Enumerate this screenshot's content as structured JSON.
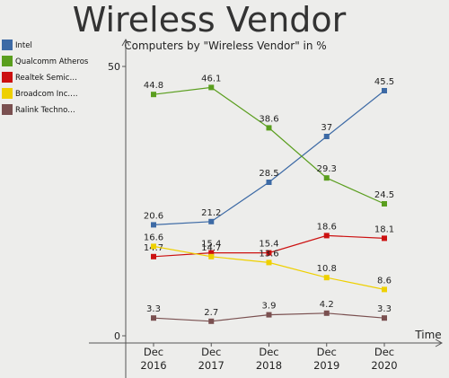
{
  "chart_data": {
    "type": "line",
    "title": "Wireless Vendor",
    "subtitle": "Computers by \"Wireless Vendor\" in %",
    "xlabel": "Time",
    "ylabel": "",
    "categories": [
      "Dec 2016",
      "Dec 2017",
      "Dec 2018",
      "Dec 2019",
      "Dec 2020"
    ],
    "category_lines": [
      [
        "Dec",
        "2016"
      ],
      [
        "Dec",
        "2017"
      ],
      [
        "Dec",
        "2018"
      ],
      [
        "Dec",
        "2019"
      ],
      [
        "Dec",
        "2020"
      ]
    ],
    "y_ticks": [
      0,
      50
    ],
    "ylim": [
      0,
      53
    ],
    "grid": false,
    "legend_position": "left",
    "series": [
      {
        "name": "Intel",
        "legend_label": "Intel",
        "color": "#3d6aa5",
        "values": [
          20.6,
          21.2,
          28.5,
          37,
          45.5
        ],
        "labels": [
          "20.6",
          "21.2",
          "28.5",
          "37",
          "45.5"
        ]
      },
      {
        "name": "Qualcomm Atheros",
        "legend_label": "Qualcomm Atheros",
        "color": "#5a9e1e",
        "values": [
          44.8,
          46.1,
          38.6,
          29.3,
          24.5
        ],
        "labels": [
          "44.8",
          "46.1",
          "38.6",
          "29.3",
          "24.5"
        ]
      },
      {
        "name": "Realtek Semiconductor",
        "legend_label": "Realtek Semic…",
        "color": "#cc1111",
        "values": [
          14.7,
          15.4,
          15.4,
          18.6,
          18.1
        ],
        "labels": [
          "14.7",
          "15.4",
          "15.4",
          "18.6",
          "18.1"
        ]
      },
      {
        "name": "Broadcom Inc.",
        "legend_label": "Broadcom Inc.…",
        "color": "#eed000",
        "values": [
          16.6,
          14.7,
          13.6,
          10.8,
          8.6
        ],
        "labels": [
          "16.6",
          "14.7",
          "13.6",
          "10.8",
          "8.6"
        ]
      },
      {
        "name": "Ralink Technology",
        "legend_label": "Ralink Techno…",
        "color": "#7a5050",
        "values": [
          3.3,
          2.7,
          3.9,
          4.2,
          3.3
        ],
        "labels": [
          "3.3",
          "2.7",
          "3.9",
          "4.2",
          "3.3"
        ]
      }
    ]
  }
}
